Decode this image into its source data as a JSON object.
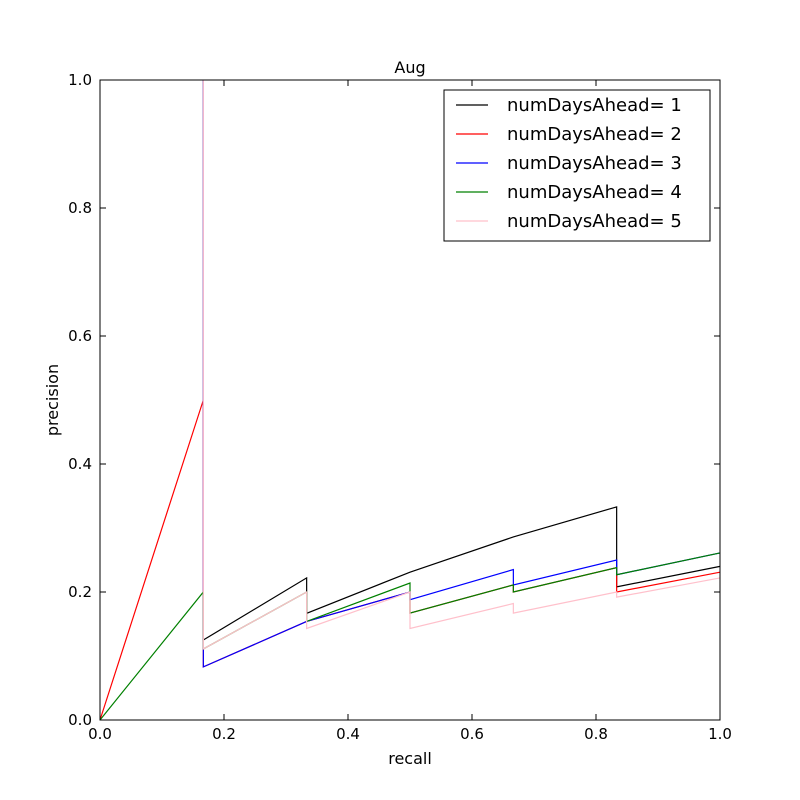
{
  "chart_data": {
    "type": "line",
    "title": "Aug",
    "xlabel": "recall",
    "ylabel": "precision",
    "xlim": [
      0.0,
      1.0
    ],
    "ylim": [
      0.0,
      1.0
    ],
    "xticks": [
      "0.0",
      "0.2",
      "0.4",
      "0.6",
      "0.8",
      "1.0"
    ],
    "yticks": [
      "0.0",
      "0.2",
      "0.4",
      "0.6",
      "0.8",
      "1.0"
    ],
    "grid": false,
    "legend_position": "top-right",
    "series": [
      {
        "name": "numDaysAhead= 1",
        "color": "#000000",
        "points": [
          [
            0.1667,
            1.0
          ],
          [
            0.1667,
            0.125
          ],
          [
            0.3333,
            0.222
          ],
          [
            0.3333,
            0.1667
          ],
          [
            0.5,
            0.231
          ],
          [
            0.6667,
            0.286
          ],
          [
            0.8333,
            0.333
          ],
          [
            0.8333,
            0.208
          ],
          [
            1.0,
            0.24
          ]
        ]
      },
      {
        "name": "numDaysAhead= 2",
        "color": "#ff0000",
        "points": [
          [
            0.0,
            0.0
          ],
          [
            0.1667,
            0.5
          ],
          [
            0.1667,
            0.083
          ],
          [
            0.3333,
            0.154
          ],
          [
            0.3333,
            0.154
          ],
          [
            0.5,
            0.2
          ],
          [
            0.5,
            0.167
          ],
          [
            0.6667,
            0.211
          ],
          [
            0.6667,
            0.2
          ],
          [
            0.8333,
            0.238
          ],
          [
            0.8333,
            0.2
          ],
          [
            1.0,
            0.231
          ]
        ]
      },
      {
        "name": "numDaysAhead= 3",
        "color": "#0000ff",
        "points": [
          [
            0.1667,
            1.0
          ],
          [
            0.1667,
            0.083
          ],
          [
            0.3333,
            0.154
          ],
          [
            0.5,
            0.2
          ],
          [
            0.5,
            0.188
          ],
          [
            0.6667,
            0.235
          ],
          [
            0.6667,
            0.211
          ],
          [
            0.8333,
            0.25
          ],
          [
            0.8333,
            0.227
          ],
          [
            1.0,
            0.261
          ]
        ]
      },
      {
        "name": "numDaysAhead= 4",
        "color": "#008000",
        "points": [
          [
            0.0,
            0.0
          ],
          [
            0.1667,
            0.2
          ],
          [
            0.1667,
            0.111
          ],
          [
            0.3333,
            0.2
          ],
          [
            0.3333,
            0.154
          ],
          [
            0.5,
            0.214
          ],
          [
            0.5,
            0.167
          ],
          [
            0.6667,
            0.211
          ],
          [
            0.6667,
            0.2
          ],
          [
            0.8333,
            0.238
          ],
          [
            0.8333,
            0.227
          ],
          [
            1.0,
            0.261
          ]
        ]
      },
      {
        "name": "numDaysAhead= 5",
        "color": "#ffc0cb",
        "points": [
          [
            0.1667,
            1.0
          ],
          [
            0.1667,
            0.111
          ],
          [
            0.3333,
            0.2
          ],
          [
            0.3333,
            0.143
          ],
          [
            0.5,
            0.2
          ],
          [
            0.5,
            0.143
          ],
          [
            0.6667,
            0.182
          ],
          [
            0.6667,
            0.167
          ],
          [
            0.8333,
            0.2
          ],
          [
            0.8333,
            0.192
          ],
          [
            1.0,
            0.222
          ]
        ]
      }
    ]
  }
}
